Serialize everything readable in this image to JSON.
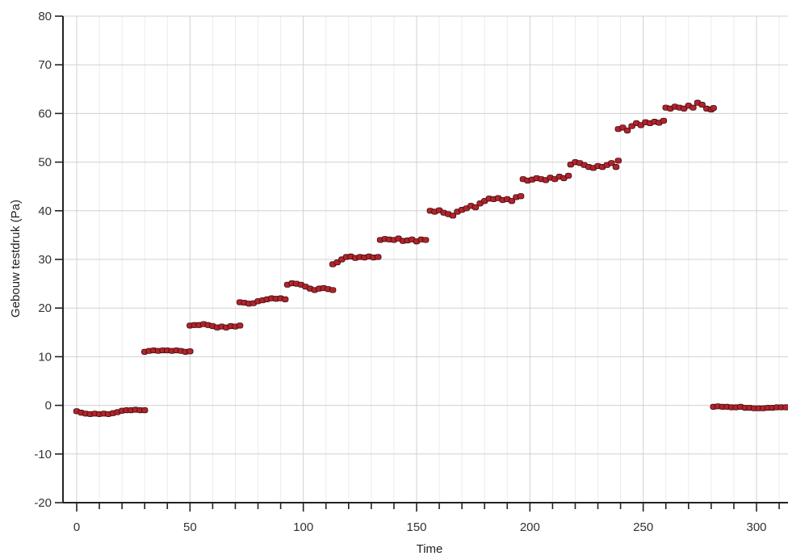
{
  "chart_data": {
    "type": "scatter",
    "title": "",
    "xlabel": "Time",
    "ylabel": "Gebouw testdruk (Pa)",
    "xlim": [
      -6,
      314
    ],
    "ylim": [
      -20,
      80
    ],
    "x_ticks": [
      0,
      50,
      100,
      150,
      200,
      250,
      300
    ],
    "y_ticks": [
      -20,
      -10,
      0,
      10,
      20,
      30,
      40,
      50,
      60,
      70,
      80
    ],
    "grid": true,
    "legend": "none",
    "marker_color": "#b3232b",
    "series": [
      {
        "name": "",
        "points": [
          [
            0,
            -1.2
          ],
          [
            2,
            -1.5
          ],
          [
            4,
            -1.7
          ],
          [
            6,
            -1.8
          ],
          [
            8,
            -1.7
          ],
          [
            10,
            -1.8
          ],
          [
            12,
            -1.7
          ],
          [
            14,
            -1.8
          ],
          [
            16,
            -1.6
          ],
          [
            18,
            -1.4
          ],
          [
            20,
            -1.1
          ],
          [
            22,
            -1.0
          ],
          [
            24,
            -1.0
          ],
          [
            26,
            -0.9
          ],
          [
            28,
            -1.0
          ],
          [
            30,
            -1.0
          ],
          [
            30,
            11.0
          ],
          [
            32,
            11.2
          ],
          [
            34,
            11.3
          ],
          [
            36,
            11.2
          ],
          [
            38,
            11.3
          ],
          [
            40,
            11.3
          ],
          [
            42,
            11.2
          ],
          [
            44,
            11.3
          ],
          [
            46,
            11.2
          ],
          [
            48,
            11.0
          ],
          [
            50,
            11.1
          ],
          [
            50,
            16.4
          ],
          [
            52,
            16.5
          ],
          [
            54,
            16.5
          ],
          [
            56,
            16.7
          ],
          [
            58,
            16.5
          ],
          [
            60,
            16.3
          ],
          [
            62,
            16.0
          ],
          [
            64,
            16.2
          ],
          [
            66,
            16.0
          ],
          [
            68,
            16.3
          ],
          [
            70,
            16.2
          ],
          [
            72,
            16.4
          ],
          [
            72,
            21.2
          ],
          [
            74,
            21.1
          ],
          [
            76,
            20.9
          ],
          [
            78,
            21.0
          ],
          [
            80,
            21.4
          ],
          [
            82,
            21.6
          ],
          [
            84,
            21.8
          ],
          [
            86,
            22.0
          ],
          [
            88,
            21.9
          ],
          [
            90,
            22.0
          ],
          [
            92,
            21.8
          ],
          [
            93,
            24.8
          ],
          [
            95,
            25.1
          ],
          [
            97,
            25.0
          ],
          [
            99,
            24.8
          ],
          [
            101,
            24.4
          ],
          [
            103,
            24.0
          ],
          [
            105,
            23.7
          ],
          [
            107,
            24.0
          ],
          [
            109,
            24.1
          ],
          [
            111,
            23.9
          ],
          [
            113,
            23.7
          ],
          [
            113,
            29.0
          ],
          [
            115,
            29.4
          ],
          [
            117,
            30.0
          ],
          [
            119,
            30.5
          ],
          [
            121,
            30.6
          ],
          [
            123,
            30.3
          ],
          [
            125,
            30.5
          ],
          [
            127,
            30.4
          ],
          [
            129,
            30.6
          ],
          [
            131,
            30.4
          ],
          [
            133,
            30.5
          ],
          [
            134,
            34.0
          ],
          [
            136,
            34.2
          ],
          [
            138,
            34.1
          ],
          [
            140,
            34.0
          ],
          [
            142,
            34.3
          ],
          [
            144,
            33.8
          ],
          [
            146,
            33.9
          ],
          [
            148,
            34.1
          ],
          [
            150,
            33.7
          ],
          [
            152,
            34.1
          ],
          [
            154,
            34.0
          ],
          [
            156,
            40.0
          ],
          [
            158,
            39.8
          ],
          [
            160,
            40.1
          ],
          [
            162,
            39.6
          ],
          [
            164,
            39.3
          ],
          [
            166,
            39.0
          ],
          [
            168,
            39.8
          ],
          [
            170,
            40.2
          ],
          [
            172,
            40.5
          ],
          [
            174,
            41.0
          ],
          [
            176,
            40.7
          ],
          [
            178,
            41.5
          ],
          [
            180,
            42.0
          ],
          [
            182,
            42.5
          ],
          [
            184,
            42.4
          ],
          [
            186,
            42.6
          ],
          [
            188,
            42.2
          ],
          [
            190,
            42.4
          ],
          [
            192,
            42.0
          ],
          [
            194,
            42.8
          ],
          [
            196,
            43.0
          ],
          [
            197,
            46.5
          ],
          [
            199,
            46.2
          ],
          [
            201,
            46.4
          ],
          [
            203,
            46.7
          ],
          [
            205,
            46.5
          ],
          [
            207,
            46.3
          ],
          [
            209,
            46.8
          ],
          [
            211,
            46.5
          ],
          [
            213,
            47.0
          ],
          [
            215,
            46.7
          ],
          [
            217,
            47.2
          ],
          [
            218,
            49.5
          ],
          [
            220,
            50.0
          ],
          [
            222,
            49.8
          ],
          [
            224,
            49.4
          ],
          [
            226,
            49.0
          ],
          [
            228,
            48.8
          ],
          [
            230,
            49.2
          ],
          [
            232,
            49.0
          ],
          [
            234,
            49.4
          ],
          [
            236,
            49.8
          ],
          [
            238,
            49.0
          ],
          [
            239,
            50.3
          ],
          [
            239,
            56.8
          ],
          [
            241,
            57.1
          ],
          [
            243,
            56.5
          ],
          [
            245,
            57.4
          ],
          [
            247,
            58.0
          ],
          [
            249,
            57.6
          ],
          [
            251,
            58.2
          ],
          [
            253,
            58.0
          ],
          [
            255,
            58.3
          ],
          [
            257,
            58.1
          ],
          [
            259,
            58.5
          ],
          [
            260,
            61.2
          ],
          [
            262,
            61.0
          ],
          [
            264,
            61.4
          ],
          [
            266,
            61.2
          ],
          [
            268,
            61.0
          ],
          [
            270,
            61.6
          ],
          [
            272,
            61.2
          ],
          [
            274,
            62.2
          ],
          [
            276,
            61.8
          ],
          [
            278,
            61.0
          ],
          [
            280,
            60.8
          ],
          [
            281,
            61.1
          ],
          [
            281,
            -0.3
          ],
          [
            283,
            -0.2
          ],
          [
            285,
            -0.3
          ],
          [
            287,
            -0.3
          ],
          [
            289,
            -0.4
          ],
          [
            291,
            -0.4
          ],
          [
            293,
            -0.3
          ],
          [
            295,
            -0.5
          ],
          [
            297,
            -0.5
          ],
          [
            299,
            -0.6
          ],
          [
            301,
            -0.6
          ],
          [
            303,
            -0.6
          ],
          [
            305,
            -0.5
          ],
          [
            307,
            -0.5
          ],
          [
            309,
            -0.4
          ],
          [
            311,
            -0.4
          ],
          [
            313,
            -0.4
          ]
        ]
      }
    ]
  }
}
